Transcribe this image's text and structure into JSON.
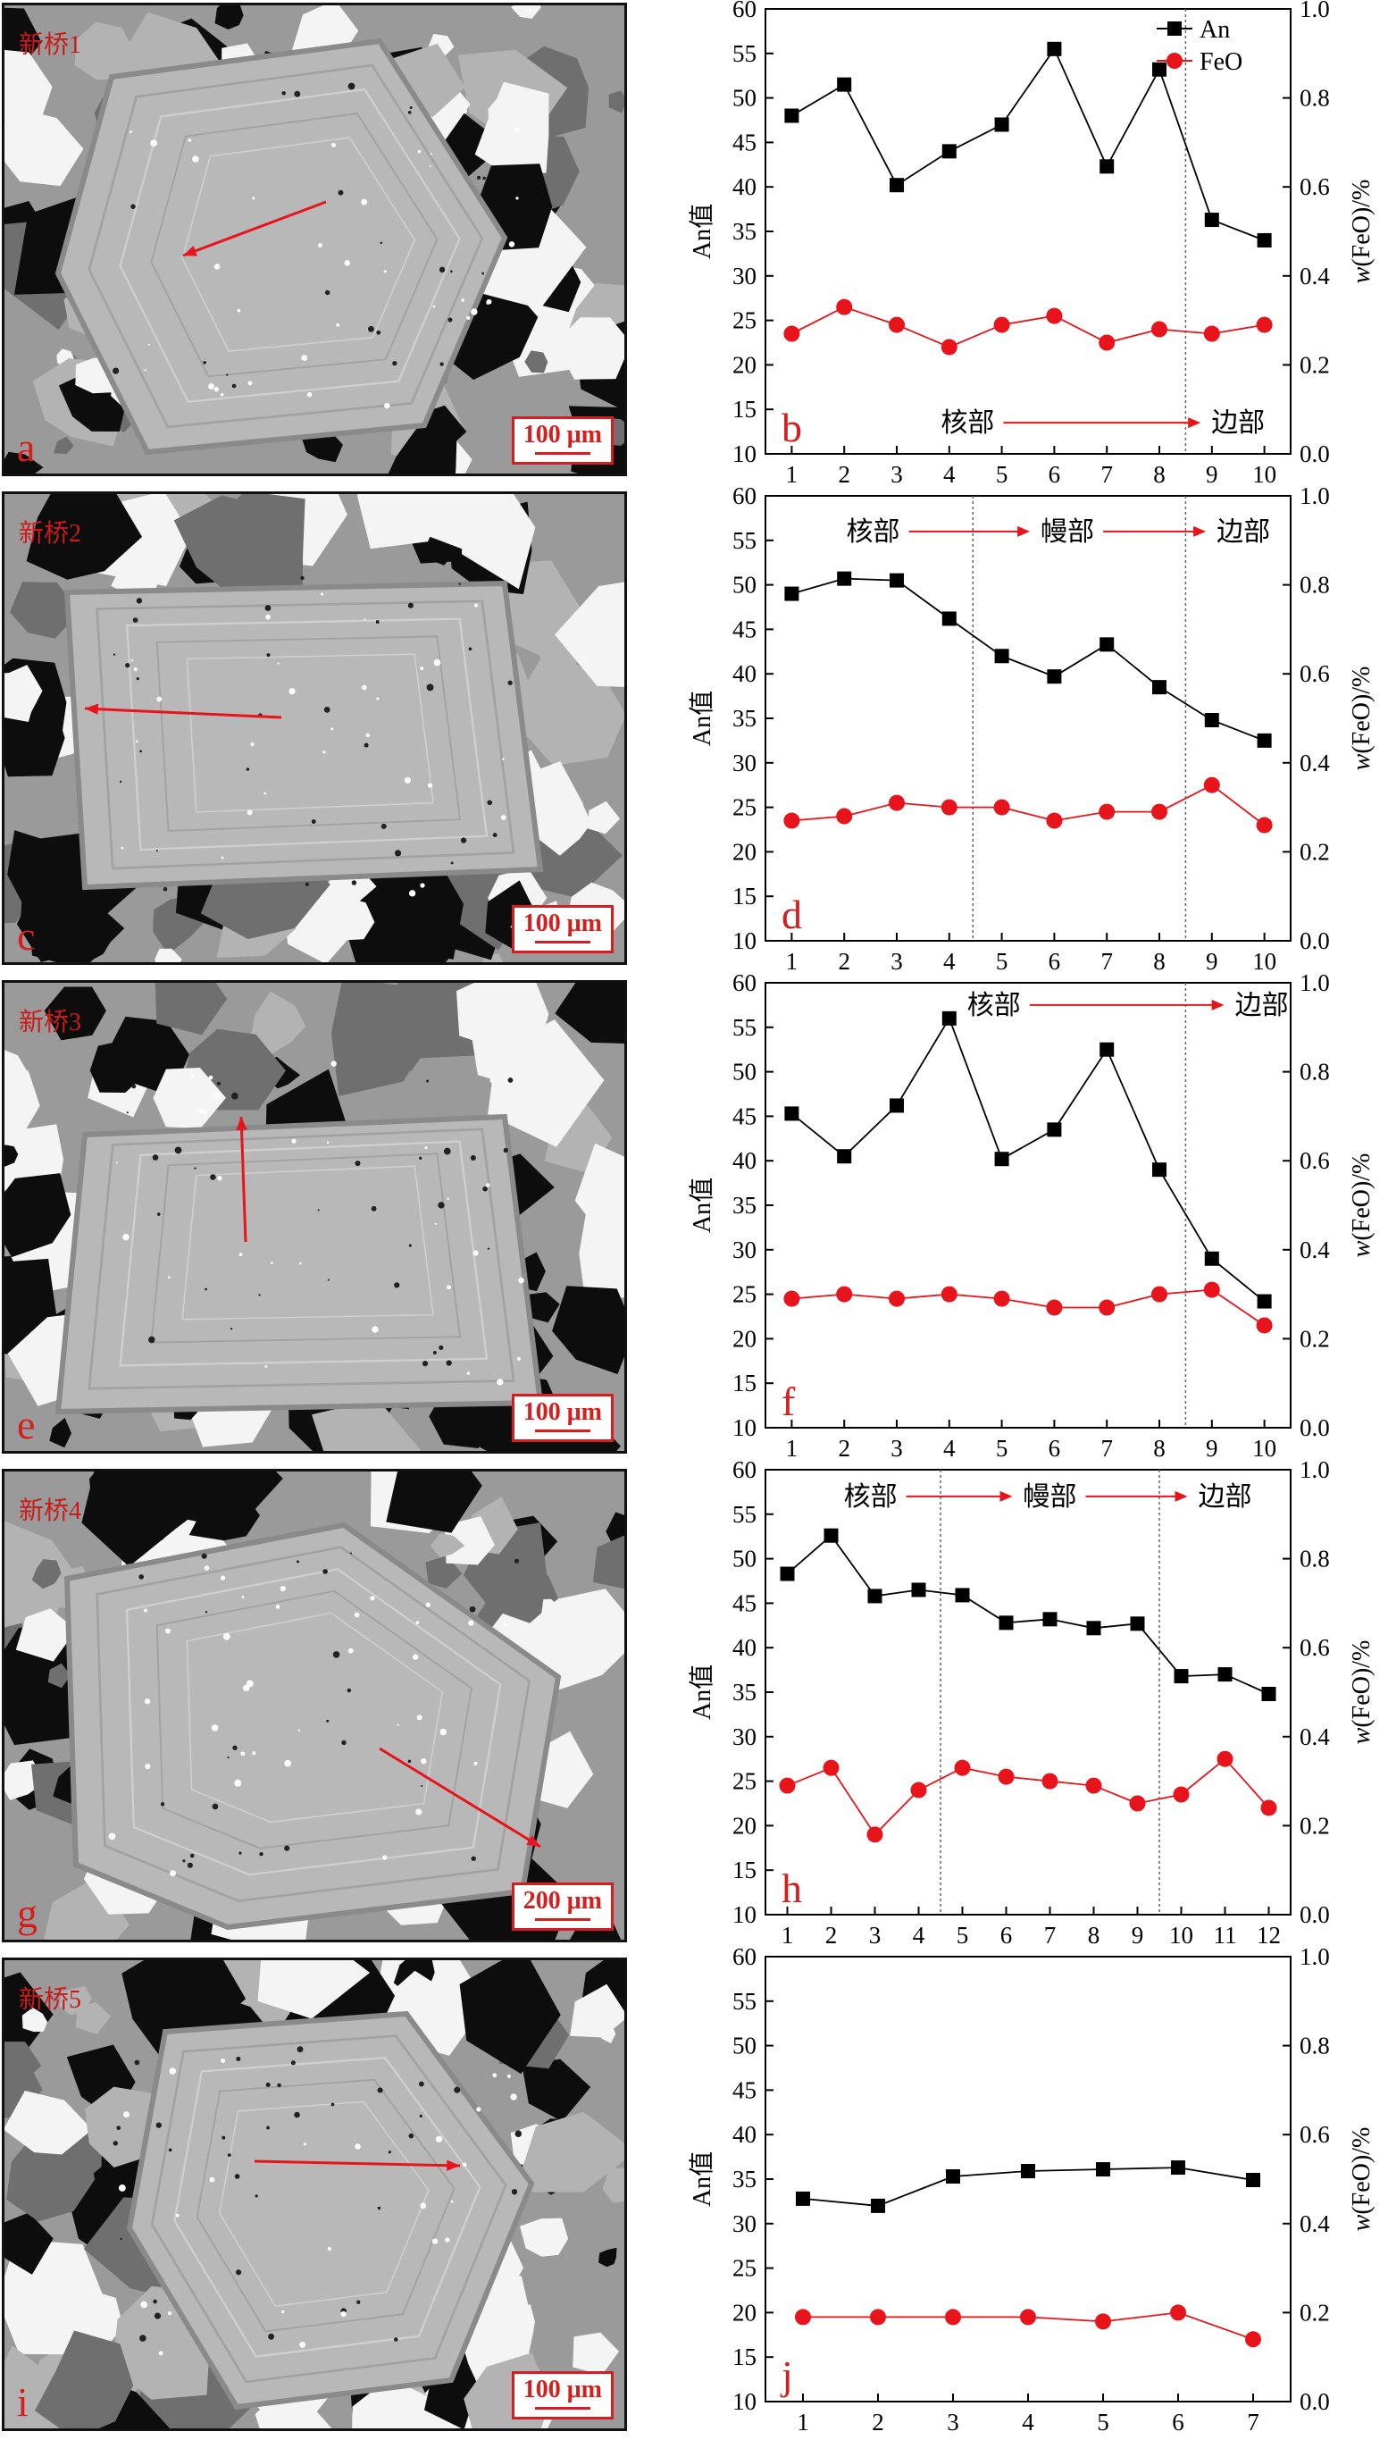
{
  "sem_panels": [
    {
      "letter": "a",
      "sample": "新桥1",
      "scale": "100 μm"
    },
    {
      "letter": "c",
      "sample": "新桥2",
      "scale": "100 μm"
    },
    {
      "letter": "e",
      "sample": "新桥3",
      "scale": "100 μm"
    },
    {
      "letter": "g",
      "sample": "新桥4",
      "scale": "200 μm"
    },
    {
      "letter": "i",
      "sample": "新桥5",
      "scale": "100 μm"
    }
  ],
  "colors": {
    "an": "#000000",
    "feo": "#e8141b",
    "arrow": "#e8141b",
    "letter": "#d61e1e"
  },
  "chart_data": [
    {
      "type": "line",
      "panel": "b",
      "x": [
        1,
        2,
        3,
        4,
        5,
        6,
        7,
        8,
        9,
        10
      ],
      "series": [
        {
          "name": "An",
          "axis": "left",
          "marker": "square",
          "color": "#000000",
          "values": [
            48,
            51.5,
            40.2,
            44,
            47,
            55.5,
            42.3,
            53.2,
            36.3,
            34
          ]
        },
        {
          "name": "FeO",
          "axis": "right",
          "marker": "circle",
          "color": "#e8141b",
          "values": [
            0.27,
            0.33,
            0.29,
            0.24,
            0.29,
            0.31,
            0.25,
            0.28,
            0.27,
            0.29
          ]
        }
      ],
      "ylabel_left": "An值",
      "ylabel_right": "w(FeO)/%",
      "ylim_left": [
        10,
        60
      ],
      "ylim_right": [
        0,
        1.0
      ],
      "legend": "top-right",
      "zone_lines": [
        8.5
      ],
      "zones": [
        {
          "text": "核部",
          "x": 4.35
        },
        {
          "text": "边部",
          "x": 9.5
        }
      ],
      "zone_y": 13.5
    },
    {
      "type": "line",
      "panel": "d",
      "x": [
        1,
        2,
        3,
        4,
        5,
        6,
        7,
        8,
        9,
        10
      ],
      "series": [
        {
          "name": "An",
          "axis": "left",
          "marker": "square",
          "color": "#000000",
          "values": [
            49,
            50.7,
            50.5,
            46.2,
            42,
            39.7,
            43.3,
            38.5,
            34.8,
            32.5
          ]
        },
        {
          "name": "FeO",
          "axis": "right",
          "marker": "circle",
          "color": "#e8141b",
          "values": [
            0.27,
            0.28,
            0.31,
            0.3,
            0.3,
            0.27,
            0.29,
            0.29,
            0.35,
            0.26
          ]
        }
      ],
      "ylabel_left": "An值",
      "ylabel_right": "w(FeO)/%",
      "ylim_left": [
        10,
        60
      ],
      "ylim_right": [
        0,
        1.0
      ],
      "zone_lines": [
        4.45,
        8.5
      ],
      "zones": [
        {
          "text": "核部",
          "x": 2.55
        },
        {
          "text": "幔部",
          "x": 6.25
        },
        {
          "text": "边部",
          "x": 9.6
        }
      ],
      "zone_y": 56
    },
    {
      "type": "line",
      "panel": "f",
      "x": [
        1,
        2,
        3,
        4,
        5,
        6,
        7,
        8,
        9,
        10
      ],
      "series": [
        {
          "name": "An",
          "axis": "left",
          "marker": "square",
          "color": "#000000",
          "values": [
            45.3,
            40.5,
            46.2,
            56,
            40.2,
            43.5,
            52.5,
            39,
            29,
            24.2
          ]
        },
        {
          "name": "FeO",
          "axis": "right",
          "marker": "circle",
          "color": "#e8141b",
          "values": [
            0.29,
            0.3,
            0.29,
            0.3,
            0.29,
            0.27,
            0.27,
            0.3,
            0.31,
            0.23
          ]
        }
      ],
      "ylabel_left": "An值",
      "ylabel_right": "w(FeO)/%",
      "ylim_left": [
        10,
        60
      ],
      "ylim_right": [
        0,
        1.0
      ],
      "zone_lines": [
        8.5
      ],
      "zones": [
        {
          "text": "核部",
          "x": 4.85
        },
        {
          "text": "边部",
          "x": 9.95
        }
      ],
      "zone_y": 57.5
    },
    {
      "type": "line",
      "panel": "h",
      "x": [
        1,
        2,
        3,
        4,
        5,
        6,
        7,
        8,
        9,
        10,
        11,
        12
      ],
      "series": [
        {
          "name": "An",
          "axis": "left",
          "marker": "square",
          "color": "#000000",
          "values": [
            48.3,
            52.6,
            45.8,
            46.5,
            45.9,
            42.8,
            43.2,
            42.2,
            42.7,
            36.8,
            37,
            34.8
          ]
        },
        {
          "name": "FeO",
          "axis": "right",
          "marker": "circle",
          "color": "#e8141b",
          "values": [
            0.29,
            0.33,
            0.18,
            0.28,
            0.33,
            0.31,
            0.3,
            0.29,
            0.25,
            0.27,
            0.35,
            0.24
          ]
        }
      ],
      "ylabel_left": "An值",
      "ylabel_right": "w(FeO)/%",
      "ylim_left": [
        10,
        60
      ],
      "ylim_right": [
        0,
        1.0
      ],
      "zone_lines": [
        4.5,
        9.5
      ],
      "zones": [
        {
          "text": "核部",
          "x": 2.9
        },
        {
          "text": "幔部",
          "x": 7.0
        },
        {
          "text": "边部",
          "x": 11.0
        }
      ],
      "zone_y": 57
    },
    {
      "type": "line",
      "panel": "j",
      "x": [
        1,
        2,
        3,
        4,
        5,
        6,
        7
      ],
      "series": [
        {
          "name": "An",
          "axis": "left",
          "marker": "square",
          "color": "#000000",
          "values": [
            32.8,
            32,
            35.3,
            35.9,
            36.1,
            36.3,
            34.9
          ]
        },
        {
          "name": "FeO",
          "axis": "right",
          "marker": "circle",
          "color": "#e8141b",
          "values": [
            0.19,
            0.19,
            0.19,
            0.19,
            0.18,
            0.2,
            0.14
          ]
        }
      ],
      "ylabel_left": "An值",
      "ylabel_right": "w(FeO)/%",
      "ylim_left": [
        10,
        60
      ],
      "ylim_right": [
        0,
        1.0
      ],
      "zone_lines": [],
      "zones": [],
      "zone_y": 57
    }
  ]
}
